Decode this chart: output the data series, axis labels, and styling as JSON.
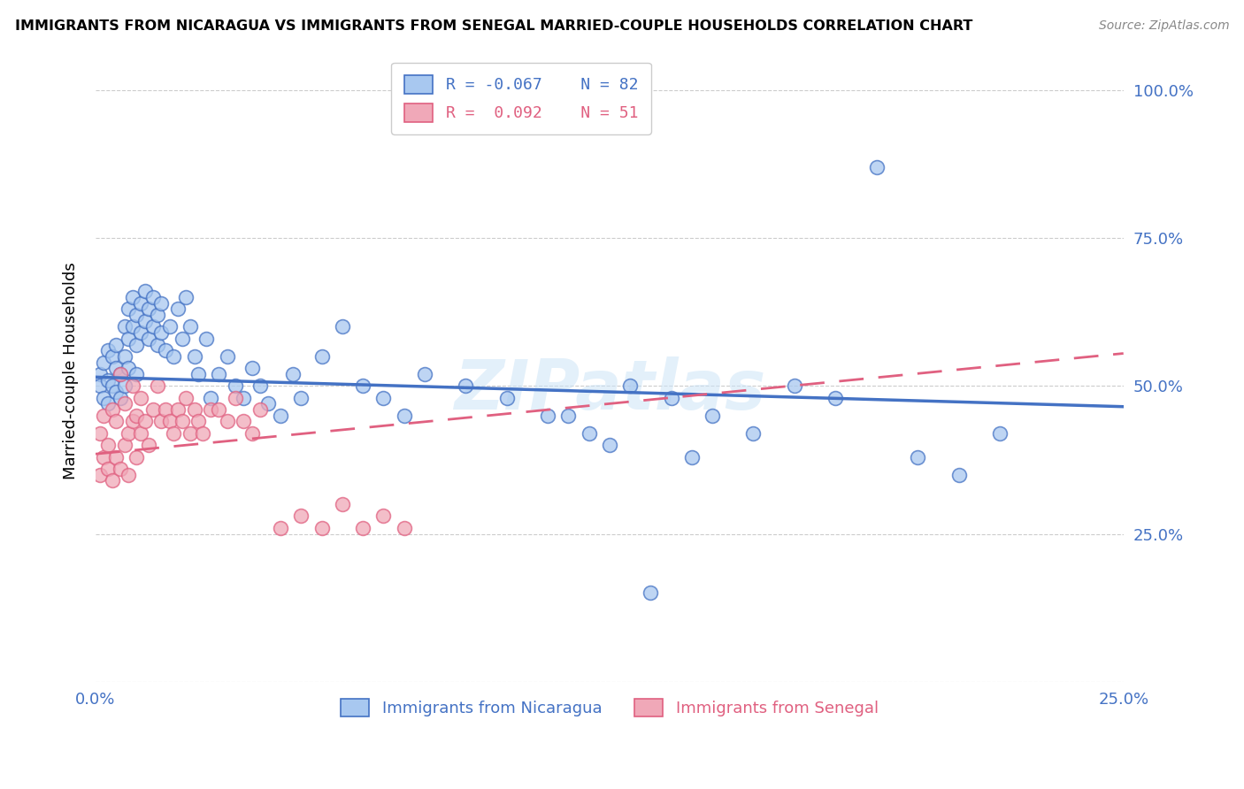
{
  "title": "IMMIGRANTS FROM NICARAGUA VS IMMIGRANTS FROM SENEGAL MARRIED-COUPLE HOUSEHOLDS CORRELATION CHART",
  "source": "Source: ZipAtlas.com",
  "ylabel": "Married-couple Households",
  "xlim": [
    0.0,
    0.25
  ],
  "ylim": [
    0.0,
    1.05
  ],
  "color_nicaragua": "#a8c8f0",
  "color_senegal": "#f0a8b8",
  "line_color_nicaragua": "#4472c4",
  "line_color_senegal": "#e06080",
  "legend_R_nicaragua": "R = -0.067",
  "legend_N_nicaragua": "N = 82",
  "legend_R_senegal": "R =  0.092",
  "legend_N_senegal": "N = 51",
  "watermark": "ZIPatlas",
  "nicaragua_x": [
    0.001,
    0.001,
    0.002,
    0.002,
    0.003,
    0.003,
    0.003,
    0.004,
    0.004,
    0.005,
    0.005,
    0.005,
    0.006,
    0.006,
    0.007,
    0.007,
    0.007,
    0.008,
    0.008,
    0.008,
    0.009,
    0.009,
    0.01,
    0.01,
    0.01,
    0.011,
    0.011,
    0.012,
    0.012,
    0.013,
    0.013,
    0.014,
    0.014,
    0.015,
    0.015,
    0.016,
    0.016,
    0.017,
    0.018,
    0.019,
    0.02,
    0.021,
    0.022,
    0.023,
    0.024,
    0.025,
    0.027,
    0.028,
    0.03,
    0.032,
    0.034,
    0.036,
    0.038,
    0.04,
    0.042,
    0.045,
    0.048,
    0.05,
    0.055,
    0.06,
    0.065,
    0.07,
    0.075,
    0.08,
    0.09,
    0.1,
    0.11,
    0.12,
    0.13,
    0.14,
    0.15,
    0.16,
    0.17,
    0.18,
    0.19,
    0.2,
    0.21,
    0.22,
    0.115,
    0.125,
    0.135,
    0.145
  ],
  "nicaragua_y": [
    0.52,
    0.5,
    0.54,
    0.48,
    0.56,
    0.51,
    0.47,
    0.55,
    0.5,
    0.53,
    0.49,
    0.57,
    0.52,
    0.48,
    0.6,
    0.55,
    0.5,
    0.63,
    0.58,
    0.53,
    0.65,
    0.6,
    0.62,
    0.57,
    0.52,
    0.64,
    0.59,
    0.66,
    0.61,
    0.63,
    0.58,
    0.65,
    0.6,
    0.62,
    0.57,
    0.64,
    0.59,
    0.56,
    0.6,
    0.55,
    0.63,
    0.58,
    0.65,
    0.6,
    0.55,
    0.52,
    0.58,
    0.48,
    0.52,
    0.55,
    0.5,
    0.48,
    0.53,
    0.5,
    0.47,
    0.45,
    0.52,
    0.48,
    0.55,
    0.6,
    0.5,
    0.48,
    0.45,
    0.52,
    0.5,
    0.48,
    0.45,
    0.42,
    0.5,
    0.48,
    0.45,
    0.42,
    0.5,
    0.48,
    0.87,
    0.38,
    0.35,
    0.42,
    0.45,
    0.4,
    0.15,
    0.38
  ],
  "senegal_x": [
    0.001,
    0.001,
    0.002,
    0.002,
    0.003,
    0.003,
    0.004,
    0.004,
    0.005,
    0.005,
    0.006,
    0.006,
    0.007,
    0.007,
    0.008,
    0.008,
    0.009,
    0.009,
    0.01,
    0.01,
    0.011,
    0.011,
    0.012,
    0.013,
    0.014,
    0.015,
    0.016,
    0.017,
    0.018,
    0.019,
    0.02,
    0.021,
    0.022,
    0.023,
    0.024,
    0.025,
    0.026,
    0.028,
    0.03,
    0.032,
    0.034,
    0.036,
    0.038,
    0.04,
    0.045,
    0.05,
    0.055,
    0.06,
    0.065,
    0.07,
    0.075
  ],
  "senegal_y": [
    0.35,
    0.42,
    0.38,
    0.45,
    0.36,
    0.4,
    0.46,
    0.34,
    0.38,
    0.44,
    0.36,
    0.52,
    0.4,
    0.47,
    0.35,
    0.42,
    0.44,
    0.5,
    0.38,
    0.45,
    0.42,
    0.48,
    0.44,
    0.4,
    0.46,
    0.5,
    0.44,
    0.46,
    0.44,
    0.42,
    0.46,
    0.44,
    0.48,
    0.42,
    0.46,
    0.44,
    0.42,
    0.46,
    0.46,
    0.44,
    0.48,
    0.44,
    0.42,
    0.46,
    0.26,
    0.28,
    0.26,
    0.3,
    0.26,
    0.28,
    0.26
  ],
  "nic_line_x": [
    0.0,
    0.25
  ],
  "nic_line_y": [
    0.515,
    0.465
  ],
  "sen_line_x": [
    0.0,
    0.25
  ],
  "sen_line_y": [
    0.385,
    0.555
  ]
}
